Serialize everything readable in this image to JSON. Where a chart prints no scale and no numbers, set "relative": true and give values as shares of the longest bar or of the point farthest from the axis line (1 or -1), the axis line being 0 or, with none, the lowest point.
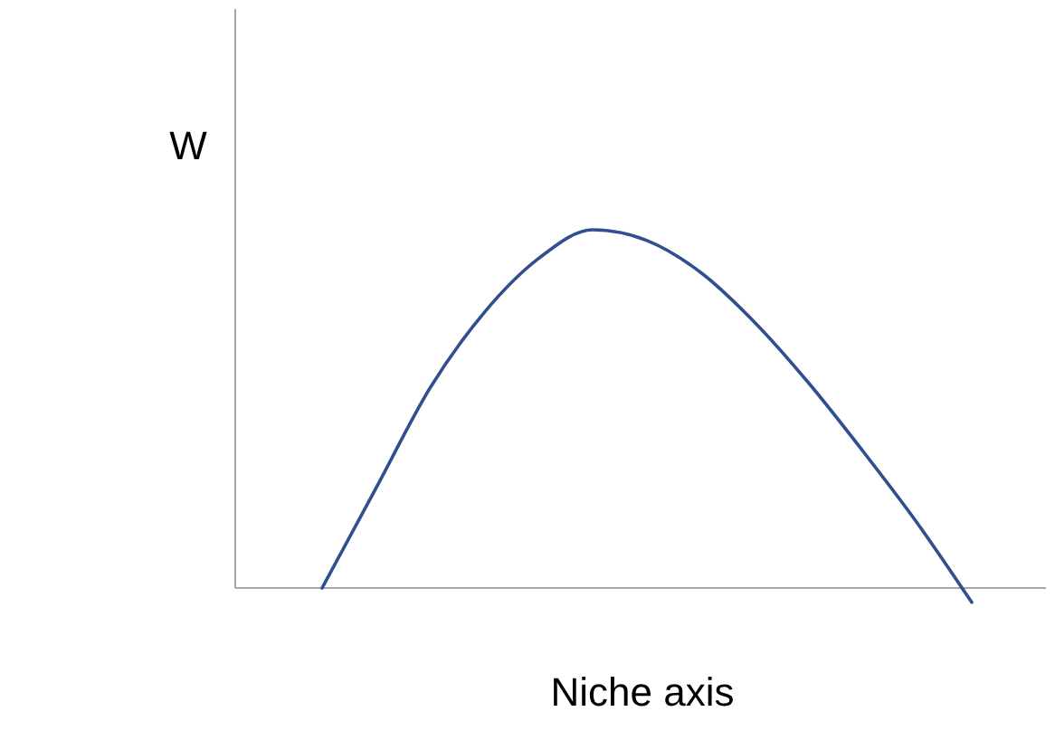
{
  "chart_data": {
    "type": "line",
    "relative": true,
    "xlabel": "Niche axis",
    "ylabel": "W",
    "categories": [
      null,
      null,
      null,
      null,
      null,
      null,
      null,
      null,
      null,
      null,
      null,
      null,
      null
    ],
    "series": [
      {
        "color": "#2f4f8f",
        "values": [
          0,
          0.28,
          0.56,
          0.77,
          0.92,
          1,
          0.97,
          0.88,
          0.74,
          0.57,
          0.38,
          0.18,
          -0.04
        ]
      }
    ],
    "marker": "none",
    "line_style": "solid"
  }
}
